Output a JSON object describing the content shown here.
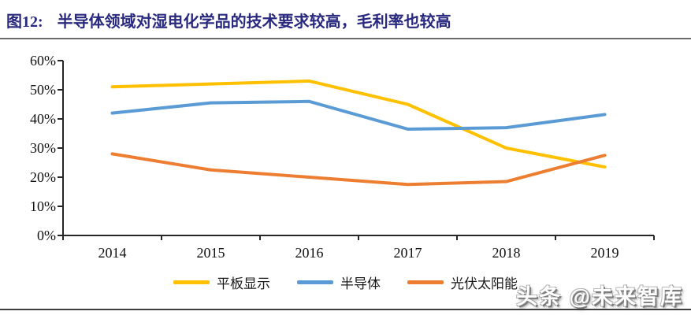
{
  "header": {
    "figure_label": "图12:",
    "title": "半导体领域对湿电化学品的技术要求较高，毛利率也较高"
  },
  "watermark": {
    "text": "头条 @未来智库"
  },
  "colors": {
    "title_text": "#29297f",
    "axis": "#262626",
    "flat_panel_display": "#FFC000",
    "semiconductor": "#5B9BD5",
    "photovoltaic_solar": "#ED7D31"
  },
  "chart_data": {
    "type": "line",
    "x": [
      "2014",
      "2015",
      "2016",
      "2017",
      "2018",
      "2019"
    ],
    "series": [
      {
        "name": "平板显示",
        "color": "#FFC000",
        "values": [
          51,
          52,
          53,
          45,
          30,
          23.5
        ]
      },
      {
        "name": "半导体",
        "color": "#5B9BD5",
        "values": [
          42,
          45.5,
          46,
          36.5,
          37,
          41.5
        ]
      },
      {
        "name": "光伏太阳能",
        "color": "#ED7D31",
        "values": [
          28,
          22.5,
          20,
          17.5,
          18.5,
          27.5
        ]
      }
    ],
    "title": "",
    "xlabel": "",
    "ylabel": "",
    "ylim": [
      0,
      60
    ],
    "ytick_step": 10,
    "ytick_labels": [
      "0%",
      "10%",
      "20%",
      "30%",
      "40%",
      "50%",
      "60%"
    ],
    "grid": false,
    "legend_position": "bottom",
    "line_width": 4
  }
}
